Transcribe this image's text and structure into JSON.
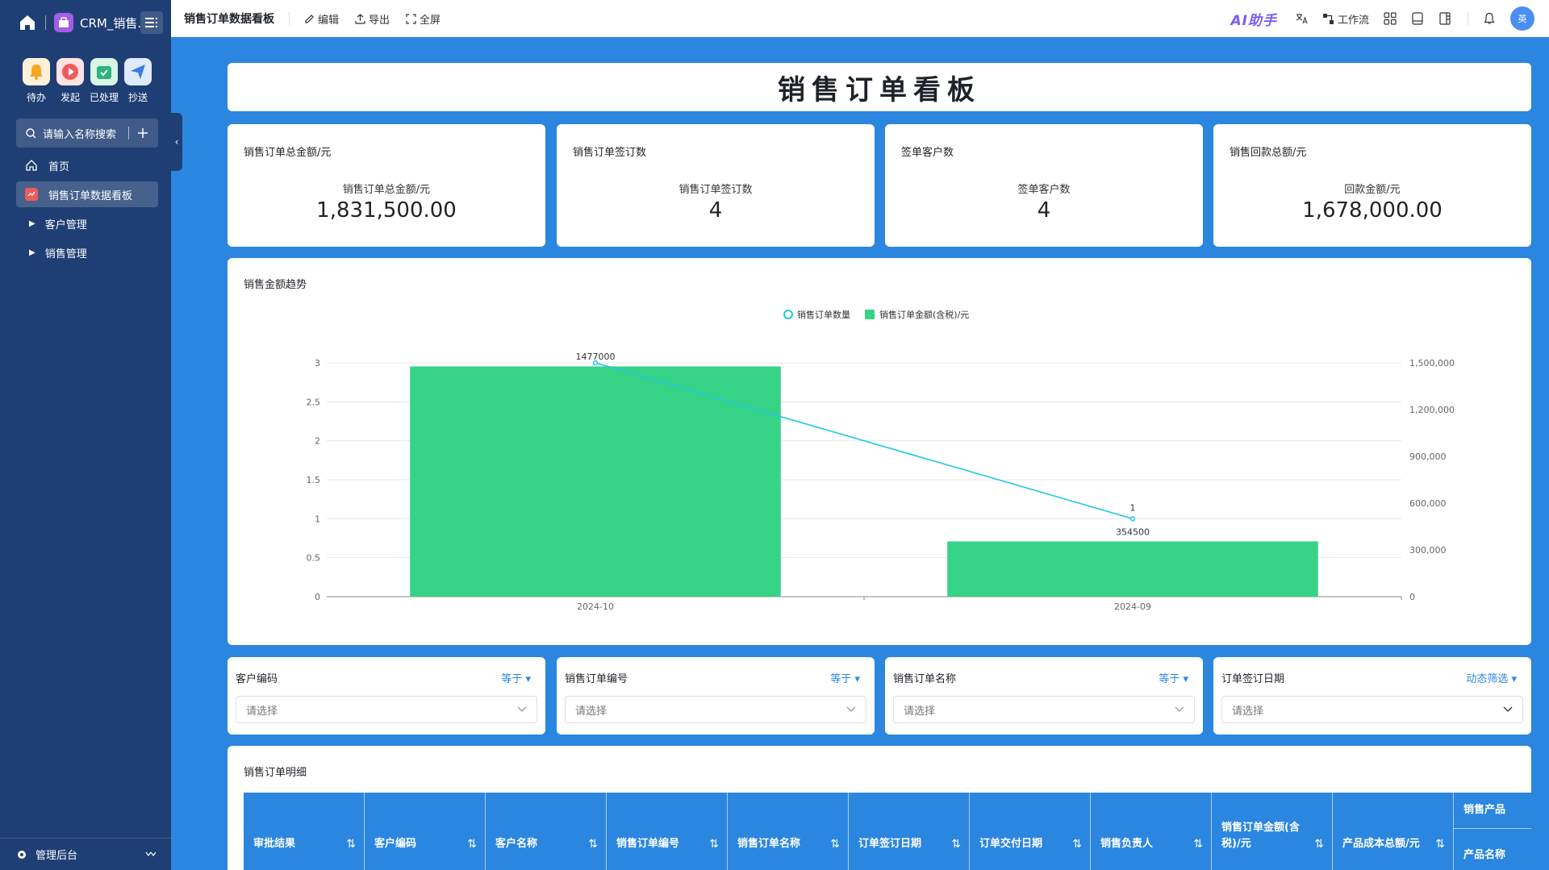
{
  "sidebar": {
    "app_title": "CRM_销售...",
    "quick": [
      {
        "label": "待办",
        "icon": "bell-icon",
        "color": "#f5a623"
      },
      {
        "label": "发起",
        "icon": "play-icon",
        "color": "#f05a5a"
      },
      {
        "label": "已处理",
        "icon": "check-icon",
        "color": "#2bb57a"
      },
      {
        "label": "抄送",
        "icon": "send-icon",
        "color": "#3a7be8"
      }
    ],
    "search_placeholder": "请输入名称搜索",
    "nav": [
      {
        "label": "首页"
      },
      {
        "label": "销售订单数据看板"
      },
      {
        "label": "客户管理"
      },
      {
        "label": "销售管理"
      }
    ],
    "bottom_label": "管理后台"
  },
  "topbar": {
    "page_title": "销售订单数据看板",
    "actions": [
      "编辑",
      "导出",
      "全屏"
    ],
    "ai_label": "AI助手",
    "workflow_label": "工作流",
    "avatar_text": "英"
  },
  "banner_title": "销售订单看板",
  "kpis": [
    {
      "title": "销售订单总金额/元",
      "sub": "销售订单总金额/元",
      "value": "1,831,500.00"
    },
    {
      "title": "销售订单签订数",
      "sub": "销售订单签订数",
      "value": "4"
    },
    {
      "title": "签单客户数",
      "sub": "签单客户数",
      "value": "4"
    },
    {
      "title": "销售回款总额/元",
      "sub": "回款金额/元",
      "value": "1,678,000.00"
    }
  ],
  "chart_title": "销售金额趋势",
  "chart_data": {
    "type": "bar",
    "categories": [
      "2024-10",
      "2024-09"
    ],
    "series": [
      {
        "name": "销售订单金额(含税)/元",
        "type": "bar",
        "axis": "right",
        "values": [
          1477000,
          354500
        ],
        "color": "#36d386"
      },
      {
        "name": "销售订单数量",
        "type": "line",
        "axis": "left",
        "values": [
          3,
          1
        ],
        "color": "#1fc8e3"
      }
    ],
    "y_left": {
      "ticks": [
        "0",
        "0.5",
        "1",
        "1.5",
        "2",
        "2.5",
        "3"
      ],
      "range": [
        0,
        3
      ]
    },
    "y_right": {
      "ticks": [
        "0",
        "300,000",
        "600,000",
        "900,000",
        "1,200,000",
        "1,500,000"
      ],
      "range": [
        0,
        1500000
      ]
    },
    "data_labels": {
      "bar": [
        "1477000",
        "354500"
      ],
      "line": [
        "",
        "1"
      ]
    },
    "legend_position": "top-center",
    "grid": true
  },
  "filters": [
    {
      "label": "客户编码",
      "op": "等于",
      "placeholder": "请选择"
    },
    {
      "label": "销售订单编号",
      "op": "等于",
      "placeholder": "请选择"
    },
    {
      "label": "销售订单名称",
      "op": "等于",
      "placeholder": "请选择"
    },
    {
      "label": "订单签订日期",
      "op": "动态筛选",
      "placeholder": "请选择"
    }
  ],
  "table": {
    "title": "销售订单明细",
    "columns": [
      "审批结果",
      "客户编码",
      "客户名称",
      "销售订单编号",
      "销售订单名称",
      "订单签订日期",
      "订单交付日期",
      "销售负责人",
      "销售订单金额(含税)/元",
      "产品成本总额/元"
    ],
    "group_header": "销售产品",
    "sub_column": "产品名称"
  }
}
